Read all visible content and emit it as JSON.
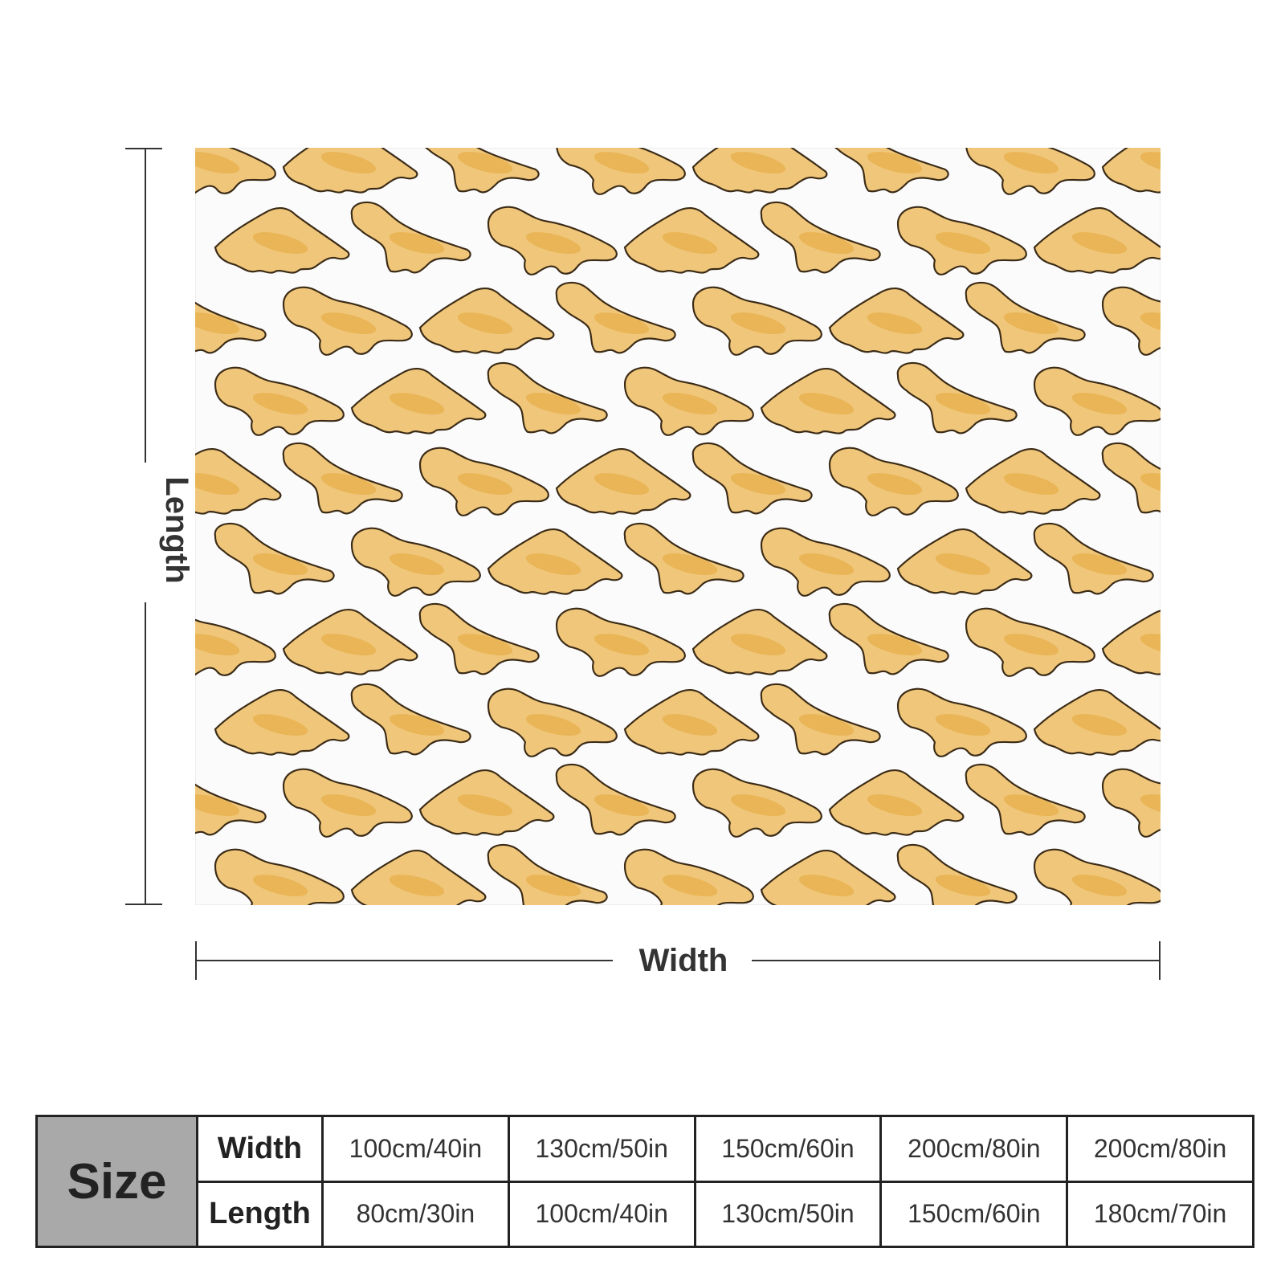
{
  "diagram": {
    "length_label": "Length",
    "width_label": "Width"
  },
  "colors": {
    "nugget_fill": "#f0c77a",
    "nugget_shade": "#e3a53a",
    "nugget_outline": "#3b2b17",
    "table_header_bg": "#a9a9a9"
  },
  "size_table": {
    "header": "Size",
    "width_label": "Width",
    "length_label": "Length",
    "widths": [
      "100cm/40in",
      "130cm/50in",
      "150cm/60in",
      "200cm/80in",
      "200cm/80in"
    ],
    "lengths": [
      "80cm/30in",
      "100cm/40in",
      "130cm/50in",
      "150cm/60in",
      "180cm/70in"
    ]
  }
}
